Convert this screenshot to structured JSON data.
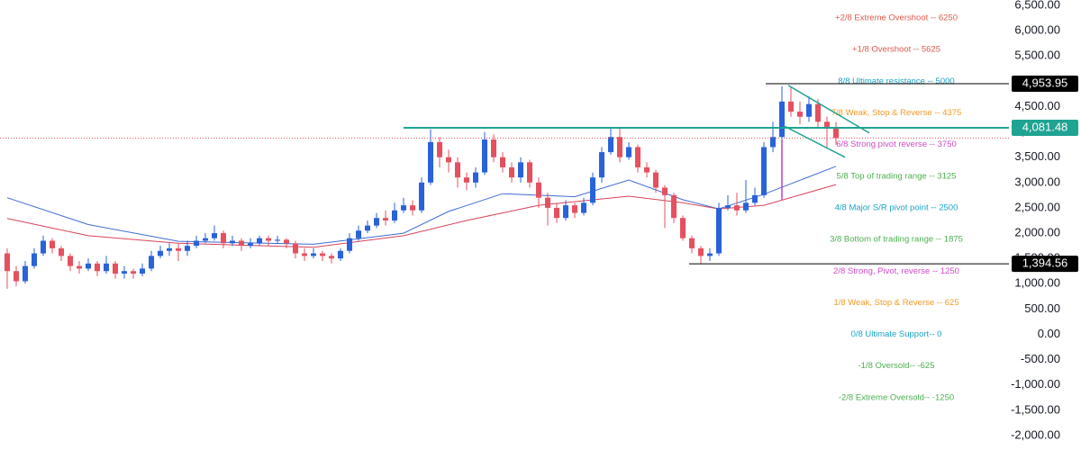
{
  "chart_data": {
    "type": "candlestick",
    "xlim": [
      -0.8,
      117.2
    ],
    "ylim": [
      -2000,
      6500
    ],
    "yticks": [
      {
        "value": 6500,
        "label": "6,500.00"
      },
      {
        "value": 6000,
        "label": "6,000.00"
      },
      {
        "value": 5500,
        "label": "5,500.00"
      },
      {
        "value": 5000,
        "label": "5,000.00"
      },
      {
        "value": 4500,
        "label": "4,500.00"
      },
      {
        "value": 4000,
        "label": "4,000.00"
      },
      {
        "value": 3500,
        "label": "3,500.00"
      },
      {
        "value": 3000,
        "label": "3,000.00"
      },
      {
        "value": 2500,
        "label": "2,500.00"
      },
      {
        "value": 2000,
        "label": "2,000.00"
      },
      {
        "value": 1500,
        "label": "1,500.00"
      },
      {
        "value": 1000,
        "label": "1,000.00"
      },
      {
        "value": 500,
        "label": "500.00"
      },
      {
        "value": 0,
        "label": "0.00"
      },
      {
        "value": -500,
        "label": "-500.00"
      },
      {
        "value": -1000,
        "label": "-1,000.00"
      },
      {
        "value": -1500,
        "label": "-1,500.00"
      },
      {
        "value": -2000,
        "label": "-2,000.00"
      }
    ],
    "up_color": "#2962d9",
    "down_color": "#e5505f",
    "open": [
      1600,
      1250,
      1050,
      1350,
      1600,
      1850,
      1700,
      1550,
      1350,
      1300,
      1400,
      1250,
      1400,
      1200,
      1250,
      1200,
      1300,
      1550,
      1650,
      1700,
      1650,
      1750,
      1850,
      1900,
      2000,
      1800,
      1850,
      1750,
      1800,
      1900,
      1850,
      1870,
      1800,
      1600,
      1550,
      1600,
      1550,
      1500,
      1650,
      1900,
      2050,
      2150,
      2300,
      2250,
      2450,
      2550,
      2450,
      3000,
      3800,
      3500,
      3400,
      3100,
      3000,
      3200,
      3850,
      3500,
      3300,
      3100,
      3400,
      3000,
      2700,
      2500,
      2300,
      2550,
      2400,
      2600,
      3100,
      3600,
      3900,
      3500,
      3700,
      3300,
      3200,
      2900,
      2750,
      2300,
      1900,
      1700,
      1550,
      1600,
      2500,
      2550,
      2450,
      2600,
      2750,
      3700,
      3900,
      4600,
      4400,
      4300,
      4550,
      4200,
      4100
    ],
    "high": [
      1700,
      1350,
      1450,
      1700,
      1950,
      1900,
      1750,
      1600,
      1450,
      1500,
      1450,
      1550,
      1450,
      1350,
      1300,
      1400,
      1650,
      1750,
      1800,
      1800,
      1850,
      1950,
      2000,
      2150,
      2050,
      1950,
      1900,
      1900,
      1950,
      1950,
      1950,
      1900,
      1850,
      1700,
      1700,
      1650,
      1600,
      1700,
      2000,
      2150,
      2250,
      2400,
      2450,
      2600,
      2700,
      2650,
      3100,
      4050,
      3900,
      3650,
      3500,
      3200,
      3300,
      4000,
      3950,
      3600,
      3400,
      3500,
      3450,
      3100,
      2800,
      2600,
      2650,
      2600,
      2700,
      3200,
      3700,
      4100,
      4100,
      3800,
      3750,
      3400,
      3250,
      2950,
      2800,
      2350,
      1950,
      1750,
      1700,
      2600,
      2750,
      2800,
      3050,
      2900,
      3800,
      4200,
      4900,
      4900,
      4600,
      4700,
      4650,
      4300,
      4200
    ],
    "low": [
      900,
      950,
      1000,
      1300,
      1550,
      1600,
      1450,
      1250,
      1200,
      1250,
      1150,
      1200,
      1100,
      1100,
      1100,
      1150,
      1250,
      1500,
      1550,
      1450,
      1550,
      1700,
      1800,
      1850,
      1700,
      1750,
      1650,
      1700,
      1750,
      1750,
      1800,
      1700,
      1500,
      1450,
      1500,
      1450,
      1400,
      1450,
      1600,
      1850,
      2000,
      2100,
      2150,
      2200,
      2400,
      2350,
      2400,
      2950,
      3300,
      3200,
      2900,
      2850,
      2900,
      3150,
      3400,
      3200,
      3000,
      3000,
      2900,
      2500,
      2150,
      2200,
      2250,
      2300,
      2350,
      2550,
      3000,
      3550,
      3400,
      3450,
      3200,
      3100,
      2800,
      2100,
      2200,
      1850,
      1600,
      1400,
      1450,
      1550,
      2450,
      2350,
      2400,
      2550,
      2700,
      3600,
      3850,
      4300,
      4150,
      4200,
      4100,
      3700,
      3750
    ],
    "close": [
      1250,
      1050,
      1350,
      1600,
      1850,
      1700,
      1550,
      1350,
      1300,
      1400,
      1250,
      1400,
      1200,
      1250,
      1200,
      1300,
      1550,
      1650,
      1700,
      1650,
      1750,
      1850,
      1900,
      2000,
      1800,
      1850,
      1750,
      1800,
      1900,
      1850,
      1870,
      1800,
      1600,
      1550,
      1600,
      1550,
      1500,
      1650,
      1900,
      2050,
      2150,
      2300,
      2250,
      2450,
      2550,
      2450,
      3000,
      3800,
      3500,
      3400,
      3100,
      3000,
      3200,
      3850,
      3500,
      3300,
      3100,
      3400,
      3000,
      2700,
      2500,
      2300,
      2550,
      2400,
      2600,
      3100,
      3600,
      3900,
      3500,
      3700,
      3300,
      3200,
      2900,
      2750,
      2300,
      1900,
      1700,
      1550,
      1600,
      2500,
      2550,
      2450,
      2600,
      2750,
      3700,
      3900,
      4600,
      4400,
      4300,
      4550,
      4200,
      4100,
      3880
    ],
    "moving_averages": [
      {
        "color": "#3d6bd6",
        "x": [
          0,
          9,
          19,
          34,
          44,
          49,
          55,
          63,
          69,
          75,
          79,
          84,
          92
        ],
        "values": [
          2700,
          2170,
          1840,
          1780,
          2000,
          2430,
          2780,
          2720,
          3050,
          2660,
          2480,
          2770,
          3320
        ]
      },
      {
        "color": "#d9435a",
        "x": [
          0,
          9,
          19,
          34,
          44,
          51,
          59,
          69,
          75,
          79,
          84,
          92
        ],
        "values": [
          2290,
          1950,
          1800,
          1720,
          1950,
          2250,
          2550,
          2730,
          2600,
          2480,
          2550,
          2960
        ]
      }
    ],
    "levels": [
      {
        "label": "+2/8 Extreme Overshoot --  6250",
        "value": 6250,
        "color": "#e0584c"
      },
      {
        "label": "+1/8 Overshoot --  5625",
        "value": 5625,
        "color": "#e0584c"
      },
      {
        "label": "8/8 Ultimate resistance --  5000",
        "value": 5000,
        "color": "#1ca3c4"
      },
      {
        "label": "7/8 Weak, Stop & Reverse --  4375",
        "value": 4375,
        "color": "#f29a25"
      },
      {
        "label": "6/8 Strong pivot reverse --  3750",
        "value": 3750,
        "color": "#d04bc8"
      },
      {
        "label": "5/8 Top of trading range --  3125",
        "value": 3125,
        "color": "#4caf50"
      },
      {
        "label": "4/8 Major S/R pivot point --  2500",
        "value": 2500,
        "color": "#1ca3c4"
      },
      {
        "label": "3/8 Bottom of trading range --  1875",
        "value": 1875,
        "color": "#4caf50"
      },
      {
        "label": "2/8 Strong, Pivot, reverse --  1250",
        "value": 1250,
        "color": "#d04bc8"
      },
      {
        "label": "1/8 Weak, Stop & Reverse --  625",
        "value": 625,
        "color": "#f29a25"
      },
      {
        "label": "0/8 Ultimate Support--  0",
        "value": 0,
        "color": "#1ca3c4"
      },
      {
        "label": "-1/8 Oversold--  -625",
        "value": -625,
        "color": "#4caf50"
      },
      {
        "label": "-2/8 Extreme Oversold--  -1250",
        "value": -1250,
        "color": "#4caf50"
      }
    ],
    "horizontal_lines": [
      {
        "value": 4953.95,
        "value_label": "4,953.95",
        "x_start": 84.2,
        "color": "#000000"
      },
      {
        "value": 4081.48,
        "value_label": "4,081.48",
        "x_start": 44,
        "color": "#1fa392"
      },
      {
        "value": 1394.56,
        "value_label": "1,394.56",
        "x_start": 75.7,
        "color": "#000000"
      }
    ],
    "trendlines": [
      {
        "x": [
          86.7,
          95.7
        ],
        "values": [
          4920,
          3980
        ],
        "color": "#1fa392"
      },
      {
        "x": [
          86.2,
          93
        ],
        "values": [
          4120,
          3500
        ],
        "color": "#1fa392"
      },
      {
        "x": [
          86,
          86
        ],
        "values": [
          2660,
          3850
        ],
        "color": "#c040c0"
      }
    ],
    "last_price_line": true
  }
}
